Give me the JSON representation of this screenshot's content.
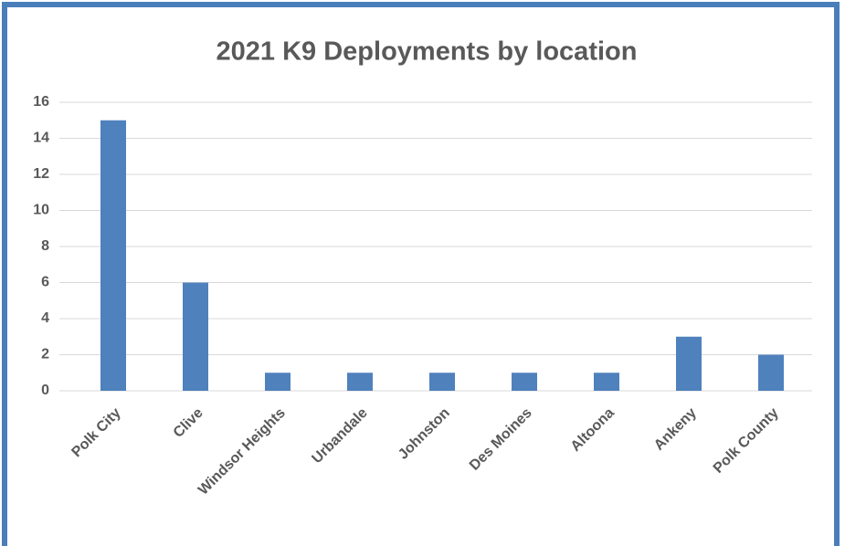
{
  "chart_data": {
    "type": "bar",
    "title": "2021 K9 Deployments by location",
    "categories": [
      "Polk City",
      "Clive",
      "Windsor Heights",
      "Urbandale",
      "Johnston",
      "Des Moines",
      "Altoona",
      "Ankeny",
      "Polk County"
    ],
    "values": [
      15,
      6,
      1,
      1,
      1,
      1,
      1,
      3,
      2
    ],
    "color": "#4f81bd",
    "ylim": [
      0,
      16
    ],
    "yticks": [
      0,
      2,
      4,
      6,
      8,
      10,
      12,
      14,
      16
    ],
    "grid": true
  }
}
